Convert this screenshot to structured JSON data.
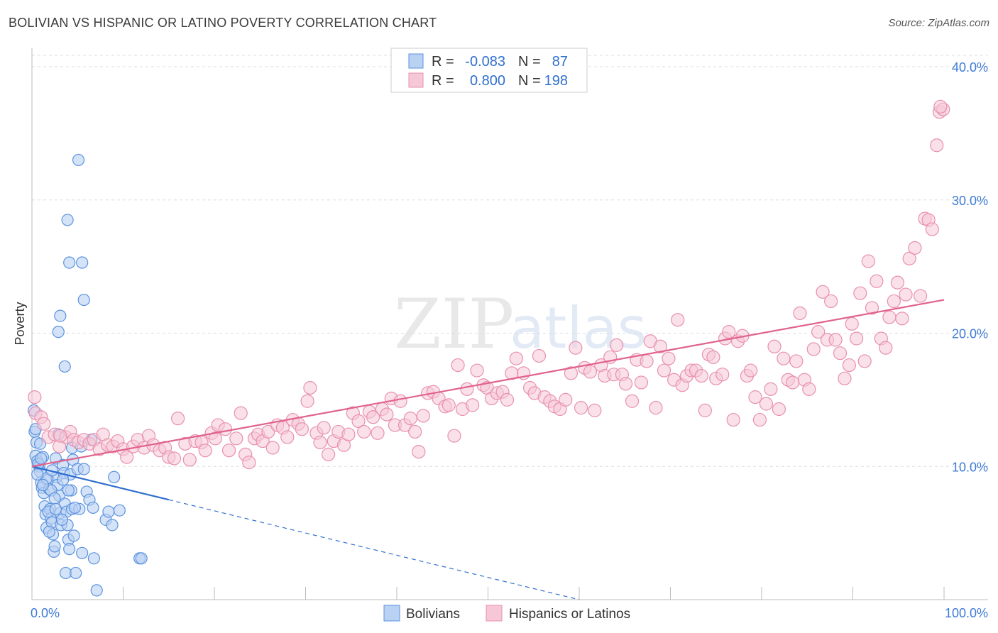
{
  "header": {
    "title": "BOLIVIAN VS HISPANIC OR LATINO POVERTY CORRELATION CHART",
    "source": "Source: ZipAtlas.com"
  },
  "watermark": {
    "zip": "ZIP",
    "atlas": "atlas"
  },
  "legend": {
    "r_label": "R =",
    "n_label": "N =",
    "rows": [
      {
        "r": "-0.083",
        "n": "87"
      },
      {
        "r": "0.800",
        "n": "198"
      }
    ]
  },
  "colors": {
    "blue": "#5b93df",
    "blue_fill": "#b9d1f3",
    "blue_line": "#2f6fce",
    "pink": "#e890ad",
    "pink_fill": "#f6c8d7",
    "pink_line": "#e0628e",
    "grid": "#dddddd",
    "tick_text": "#3e7bd6"
  },
  "chart_data": {
    "type": "scatter",
    "title": "BOLIVIAN VS HISPANIC OR LATINO POVERTY CORRELATION CHART",
    "xlabel": "",
    "ylabel": "Poverty",
    "xlim": [
      0,
      100
    ],
    "ylim": [
      0,
      40
    ],
    "x_ticks": [
      0,
      10,
      20,
      30,
      40,
      50,
      60,
      70,
      80,
      90,
      100
    ],
    "x_tick_labels": [
      "0.0%",
      "100.0%"
    ],
    "y_ticks": [
      10,
      20,
      30,
      40
    ],
    "y_tick_labels": [
      "10.0%",
      "20.0%",
      "30.0%",
      "40.0%"
    ],
    "legend_position": "top-center",
    "series": [
      {
        "name": "Bolivians",
        "r": -0.083,
        "n": 87,
        "trend": {
          "x0": 0,
          "y0": 10.0,
          "x1": 15,
          "y1": 7.5,
          "dashed_to_x": 60,
          "dashed_to_y": 0.0
        },
        "points": [
          [
            0.2,
            14.2
          ],
          [
            0.3,
            12.6
          ],
          [
            0.5,
            11.8
          ],
          [
            0.4,
            10.8
          ],
          [
            0.6,
            10.4
          ],
          [
            0.8,
            10.0
          ],
          [
            0.9,
            9.6
          ],
          [
            1.0,
            8.8
          ],
          [
            1.1,
            8.4
          ],
          [
            1.3,
            8.0
          ],
          [
            1.4,
            7.0
          ],
          [
            1.5,
            6.4
          ],
          [
            1.6,
            5.4
          ],
          [
            1.2,
            10.7
          ],
          [
            1.8,
            9.0
          ],
          [
            1.9,
            8.3
          ],
          [
            2.0,
            6.8
          ],
          [
            2.1,
            6.1
          ],
          [
            2.2,
            5.8
          ],
          [
            2.3,
            4.9
          ],
          [
            2.4,
            3.6
          ],
          [
            2.5,
            4.0
          ],
          [
            2.6,
            10.6
          ],
          [
            2.7,
            9.2
          ],
          [
            2.8,
            8.6
          ],
          [
            3.0,
            7.8
          ],
          [
            3.1,
            6.5
          ],
          [
            3.2,
            5.6
          ],
          [
            2.9,
            12.4
          ],
          [
            3.4,
            10.1
          ],
          [
            3.5,
            9.5
          ],
          [
            3.6,
            7.2
          ],
          [
            3.8,
            6.6
          ],
          [
            3.9,
            5.6
          ],
          [
            4.0,
            4.5
          ],
          [
            4.1,
            3.8
          ],
          [
            3.7,
            2.0
          ],
          [
            4.2,
            9.4
          ],
          [
            4.3,
            8.2
          ],
          [
            4.4,
            6.8
          ],
          [
            4.6,
            4.8
          ],
          [
            4.8,
            2.0
          ],
          [
            4.5,
            10.5
          ],
          [
            5.0,
            9.8
          ],
          [
            5.2,
            6.8
          ],
          [
            5.5,
            3.5
          ],
          [
            5.7,
            9.8
          ],
          [
            6.0,
            8.1
          ],
          [
            6.3,
            7.5
          ],
          [
            6.8,
            3.1
          ],
          [
            7.1,
            0.7
          ],
          [
            8.1,
            6.0
          ],
          [
            8.4,
            6.6
          ],
          [
            8.8,
            5.6
          ],
          [
            9.0,
            9.2
          ],
          [
            9.6,
            6.7
          ],
          [
            11.8,
            3.1
          ],
          [
            12.0,
            3.1
          ],
          [
            5.1,
            33.0
          ],
          [
            3.9,
            28.5
          ],
          [
            4.1,
            25.3
          ],
          [
            5.5,
            25.3
          ],
          [
            5.7,
            22.5
          ],
          [
            3.1,
            21.3
          ],
          [
            2.9,
            20.1
          ],
          [
            3.6,
            17.5
          ],
          [
            0.4,
            12.8
          ],
          [
            0.7,
            10.2
          ],
          [
            1.0,
            10.6
          ],
          [
            1.6,
            9.1
          ],
          [
            2.1,
            8.2
          ],
          [
            2.5,
            7.6
          ],
          [
            3.3,
            6.0
          ],
          [
            1.8,
            6.6
          ],
          [
            2.2,
            9.7
          ],
          [
            0.6,
            9.4
          ],
          [
            6.5,
            12.0
          ],
          [
            4.4,
            11.4
          ],
          [
            5.4,
            11.5
          ],
          [
            3.4,
            9.0
          ],
          [
            1.2,
            8.6
          ],
          [
            2.6,
            6.8
          ],
          [
            1.9,
            5.1
          ],
          [
            4.7,
            6.9
          ],
          [
            6.7,
            6.9
          ],
          [
            0.9,
            11.7
          ],
          [
            4.0,
            8.2
          ]
        ]
      },
      {
        "name": "Hispanics or Latinos",
        "r": 0.8,
        "n": 198,
        "trend": {
          "x0": 0,
          "y0": 10.0,
          "x1": 100,
          "y1": 22.5
        },
        "points": [
          [
            0.3,
            15.2
          ],
          [
            0.4,
            14.0
          ],
          [
            1.0,
            13.7
          ],
          [
            1.3,
            13.2
          ],
          [
            1.8,
            12.2
          ],
          [
            2.5,
            12.4
          ],
          [
            3.0,
            11.5
          ],
          [
            3.7,
            12.2
          ],
          [
            4.2,
            12.6
          ],
          [
            4.6,
            12.0
          ],
          [
            5.1,
            11.8
          ],
          [
            5.7,
            12.0
          ],
          [
            6.3,
            11.7
          ],
          [
            6.8,
            12.0
          ],
          [
            7.4,
            11.3
          ],
          [
            7.8,
            12.4
          ],
          [
            8.3,
            11.6
          ],
          [
            8.9,
            11.5
          ],
          [
            9.4,
            11.9
          ],
          [
            10.0,
            11.3
          ],
          [
            10.4,
            10.7
          ],
          [
            11.1,
            11.5
          ],
          [
            11.6,
            12.0
          ],
          [
            12.3,
            11.4
          ],
          [
            12.8,
            12.3
          ],
          [
            13.3,
            11.6
          ],
          [
            14.0,
            11.2
          ],
          [
            14.6,
            11.4
          ],
          [
            15.0,
            10.7
          ],
          [
            15.6,
            10.6
          ],
          [
            16.0,
            13.6
          ],
          [
            16.8,
            11.7
          ],
          [
            17.3,
            10.5
          ],
          [
            17.9,
            11.9
          ],
          [
            18.6,
            11.8
          ],
          [
            19.0,
            11.2
          ],
          [
            19.7,
            12.5
          ],
          [
            20.1,
            12.1
          ],
          [
            20.4,
            13.1
          ],
          [
            21.2,
            12.8
          ],
          [
            21.6,
            11.2
          ],
          [
            22.4,
            12.1
          ],
          [
            22.9,
            14.0
          ],
          [
            23.4,
            10.9
          ],
          [
            23.8,
            10.3
          ],
          [
            24.4,
            12.1
          ],
          [
            24.8,
            12.4
          ],
          [
            25.3,
            11.9
          ],
          [
            25.9,
            12.6
          ],
          [
            26.4,
            11.4
          ],
          [
            26.9,
            13.1
          ],
          [
            27.5,
            12.9
          ],
          [
            28.0,
            12.2
          ],
          [
            28.6,
            13.5
          ],
          [
            29.2,
            13.2
          ],
          [
            29.6,
            12.8
          ],
          [
            30.2,
            14.9
          ],
          [
            30.5,
            15.9
          ],
          [
            31.2,
            12.5
          ],
          [
            31.6,
            11.8
          ],
          [
            32.0,
            12.9
          ],
          [
            32.5,
            10.9
          ],
          [
            33.1,
            11.9
          ],
          [
            33.6,
            12.6
          ],
          [
            34.2,
            11.6
          ],
          [
            34.7,
            12.4
          ],
          [
            35.2,
            14.0
          ],
          [
            35.8,
            13.4
          ],
          [
            36.4,
            12.6
          ],
          [
            37.0,
            14.1
          ],
          [
            37.4,
            13.7
          ],
          [
            37.9,
            12.5
          ],
          [
            38.4,
            14.3
          ],
          [
            38.9,
            13.9
          ],
          [
            39.4,
            15.1
          ],
          [
            39.8,
            13.1
          ],
          [
            40.4,
            14.9
          ],
          [
            40.9,
            13.1
          ],
          [
            41.5,
            13.6
          ],
          [
            42.0,
            12.6
          ],
          [
            42.4,
            11.1
          ],
          [
            42.9,
            13.8
          ],
          [
            43.4,
            15.5
          ],
          [
            44.0,
            15.6
          ],
          [
            44.6,
            15.1
          ],
          [
            45.3,
            14.5
          ],
          [
            45.7,
            14.6
          ],
          [
            46.3,
            12.3
          ],
          [
            46.7,
            17.6
          ],
          [
            47.2,
            14.3
          ],
          [
            47.7,
            15.8
          ],
          [
            48.3,
            14.6
          ],
          [
            48.8,
            17.2
          ],
          [
            49.5,
            16.1
          ],
          [
            49.9,
            15.9
          ],
          [
            50.4,
            15.1
          ],
          [
            51.0,
            15.5
          ],
          [
            51.6,
            15.6
          ],
          [
            52.1,
            15.0
          ],
          [
            52.6,
            17.0
          ],
          [
            53.1,
            18.1
          ],
          [
            53.9,
            17.0
          ],
          [
            54.6,
            15.9
          ],
          [
            55.1,
            15.5
          ],
          [
            55.6,
            18.3
          ],
          [
            56.2,
            15.2
          ],
          [
            56.8,
            14.9
          ],
          [
            57.3,
            14.5
          ],
          [
            57.9,
            14.3
          ],
          [
            58.5,
            15.0
          ],
          [
            59.1,
            17.0
          ],
          [
            59.6,
            18.9
          ],
          [
            60.2,
            14.4
          ],
          [
            60.6,
            17.4
          ],
          [
            61.2,
            17.1
          ],
          [
            61.7,
            14.2
          ],
          [
            62.4,
            17.6
          ],
          [
            62.8,
            16.8
          ],
          [
            63.4,
            18.2
          ],
          [
            63.8,
            16.9
          ],
          [
            64.1,
            19.1
          ],
          [
            64.7,
            16.9
          ],
          [
            65.1,
            16.2
          ],
          [
            65.8,
            14.9
          ],
          [
            66.3,
            18.0
          ],
          [
            66.8,
            16.3
          ],
          [
            67.4,
            17.9
          ],
          [
            67.8,
            19.4
          ],
          [
            68.4,
            14.4
          ],
          [
            68.9,
            19.0
          ],
          [
            69.3,
            17.2
          ],
          [
            69.8,
            18.1
          ],
          [
            70.4,
            16.5
          ],
          [
            70.8,
            21.0
          ],
          [
            71.3,
            16.1
          ],
          [
            71.8,
            16.8
          ],
          [
            72.3,
            17.2
          ],
          [
            72.8,
            17.2
          ],
          [
            73.4,
            16.8
          ],
          [
            73.8,
            14.2
          ],
          [
            74.2,
            18.4
          ],
          [
            74.7,
            18.2
          ],
          [
            75.0,
            16.6
          ],
          [
            75.7,
            16.9
          ],
          [
            76.0,
            19.6
          ],
          [
            76.4,
            20.1
          ],
          [
            76.9,
            13.5
          ],
          [
            77.4,
            19.4
          ],
          [
            77.9,
            19.8
          ],
          [
            78.4,
            16.8
          ],
          [
            78.8,
            17.2
          ],
          [
            79.3,
            15.2
          ],
          [
            79.8,
            13.5
          ],
          [
            80.5,
            14.7
          ],
          [
            81.0,
            15.8
          ],
          [
            81.4,
            19.0
          ],
          [
            81.9,
            14.3
          ],
          [
            82.4,
            18.1
          ],
          [
            82.9,
            16.5
          ],
          [
            83.4,
            16.3
          ],
          [
            83.8,
            17.9
          ],
          [
            84.2,
            21.5
          ],
          [
            84.7,
            16.5
          ],
          [
            85.2,
            15.8
          ],
          [
            85.7,
            18.8
          ],
          [
            86.2,
            20.1
          ],
          [
            86.7,
            23.1
          ],
          [
            87.2,
            19.5
          ],
          [
            87.6,
            22.4
          ],
          [
            88.1,
            19.5
          ],
          [
            88.6,
            18.5
          ],
          [
            89.1,
            16.6
          ],
          [
            89.6,
            17.6
          ],
          [
            89.9,
            20.7
          ],
          [
            90.4,
            19.6
          ],
          [
            90.8,
            23.0
          ],
          [
            91.3,
            17.9
          ],
          [
            91.7,
            25.4
          ],
          [
            92.1,
            21.9
          ],
          [
            92.6,
            23.9
          ],
          [
            93.1,
            19.6
          ],
          [
            93.6,
            18.9
          ],
          [
            94.0,
            21.2
          ],
          [
            94.5,
            22.4
          ],
          [
            94.9,
            23.8
          ],
          [
            95.4,
            21.1
          ],
          [
            95.8,
            22.9
          ],
          [
            96.2,
            25.6
          ],
          [
            96.8,
            26.4
          ],
          [
            97.4,
            22.8
          ],
          [
            97.9,
            28.6
          ],
          [
            98.3,
            28.5
          ],
          [
            98.7,
            27.8
          ],
          [
            99.2,
            34.1
          ],
          [
            99.5,
            36.6
          ],
          [
            99.9,
            36.8
          ],
          [
            99.6,
            37.0
          ],
          [
            3.1,
            12.3
          ]
        ]
      }
    ]
  },
  "bottom_legend": [
    {
      "label": "Bolivians"
    },
    {
      "label": "Hispanics or Latinos"
    }
  ]
}
